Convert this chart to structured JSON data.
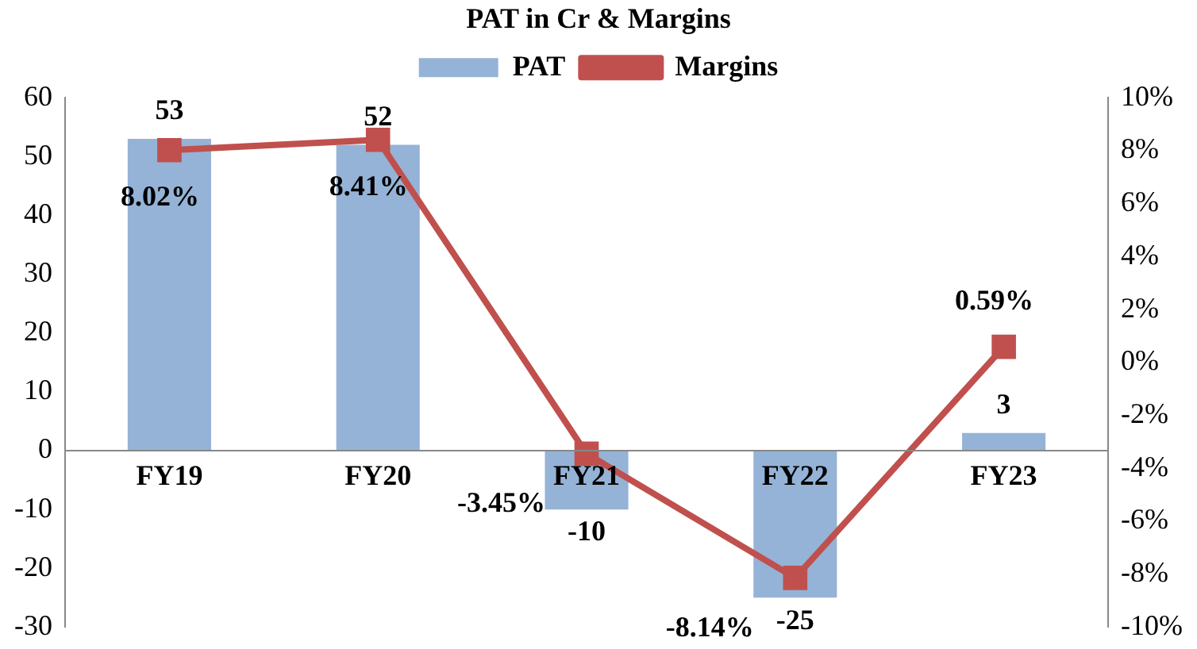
{
  "chart_data": {
    "type": "bar",
    "title": "PAT in Cr & Margins",
    "categories": [
      "FY19",
      "FY20",
      "FY21",
      "FY22",
      "FY23"
    ],
    "series": [
      {
        "name": "PAT",
        "color": "#95b3d7",
        "values": [
          53,
          52,
          -10,
          -25,
          3
        ],
        "value_labels": [
          "53",
          "52",
          "-10",
          "-25",
          "3"
        ]
      },
      {
        "name": "Margins",
        "type": "line",
        "axis": "y2",
        "color": "#c0504d",
        "values": [
          8.02,
          8.41,
          -3.45,
          -8.14,
          0.59
        ],
        "value_labels": [
          "8.02%",
          "8.41%",
          "-3.45%",
          "-8.14%",
          "0.59%"
        ]
      }
    ],
    "ylim": [
      -30,
      60
    ],
    "yticks": [
      -30,
      -20,
      -10,
      0,
      10,
      20,
      30,
      40,
      50,
      60
    ],
    "y2lim": [
      -10,
      10
    ],
    "y2ticks": [
      {
        "value": -10,
        "label": "-10%"
      },
      {
        "value": -8,
        "label": "-8%"
      },
      {
        "value": -6,
        "label": "-6%"
      },
      {
        "value": -4,
        "label": "-4%"
      },
      {
        "value": -2,
        "label": "-2%"
      },
      {
        "value": 0,
        "label": "0%"
      },
      {
        "value": 2,
        "label": "2%"
      },
      {
        "value": 4,
        "label": "4%"
      },
      {
        "value": 6,
        "label": "6%"
      },
      {
        "value": 8,
        "label": "8%"
      },
      {
        "value": 10,
        "label": "10%"
      }
    ],
    "legend": "top",
    "grid": false,
    "marker": "square",
    "line_style": "solid"
  }
}
